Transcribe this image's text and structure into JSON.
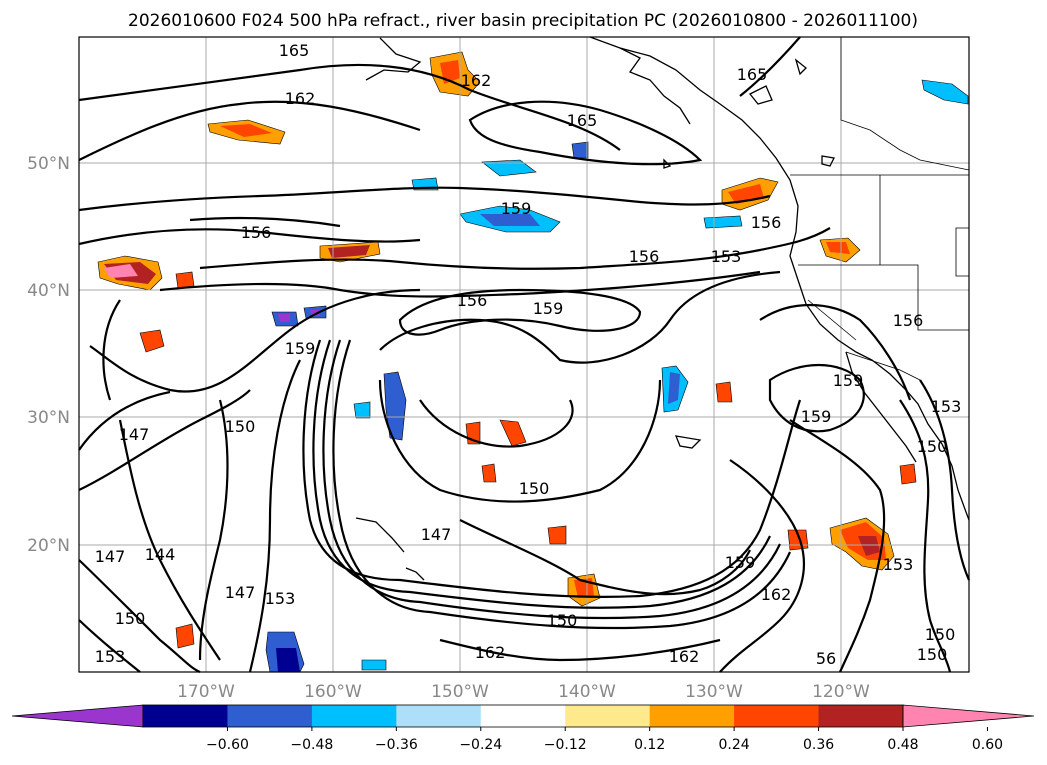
{
  "title": "2026010600 F024 500 hPa refract., river basin precipitation PC (2026010800 - 2026011100)",
  "lat_labels": [
    "50°N",
    "40°N",
    "30°N",
    "20°N"
  ],
  "lon_labels": [
    "170°W",
    "160°W",
    "150°W",
    "140°W",
    "130°W",
    "120°W"
  ],
  "contour_labels": [
    "165",
    "162",
    "162",
    "165",
    "165",
    "159",
    "156",
    "156",
    "156",
    "153",
    "156",
    "159",
    "159",
    "150",
    "147",
    "150",
    "147",
    "144",
    "147",
    "153",
    "150",
    "153",
    "147",
    "150",
    "159",
    "162",
    "150",
    "162",
    "162",
    "56",
    "159",
    "159",
    "153",
    "150",
    "153",
    "150",
    "156"
  ],
  "colorbar": {
    "ticks": [
      "−0.60",
      "−0.48",
      "−0.36",
      "−0.24",
      "−0.12",
      "0.12",
      "0.24",
      "0.36",
      "0.48",
      "0.60"
    ],
    "colors": [
      "#9a35cd",
      "#000090",
      "#2f5ed0",
      "#00bfff",
      "#ade0f8",
      "#ffffff",
      "#feea8c",
      "#ffa000",
      "#ff4500",
      "#b22222",
      "#ff85b0"
    ]
  }
}
